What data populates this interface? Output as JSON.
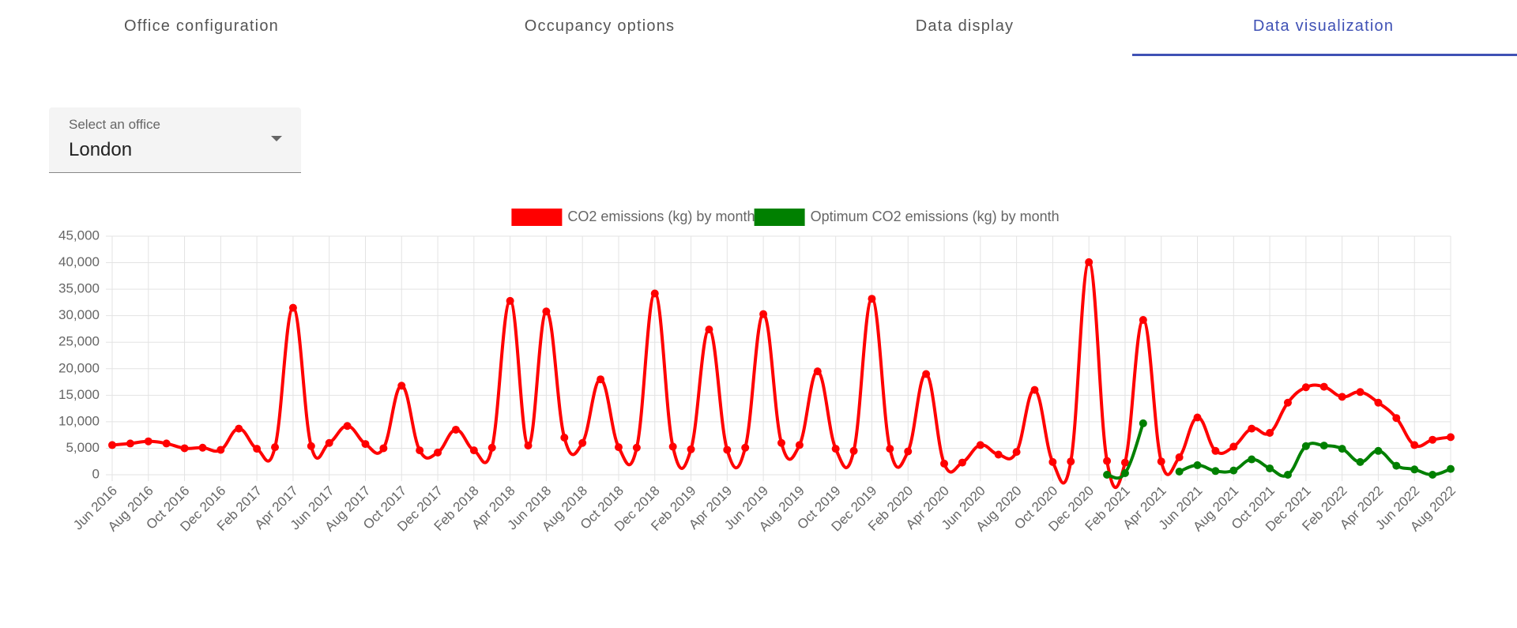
{
  "tabs": [
    "Office configuration",
    "Occupancy options",
    "Data display",
    "Data visualization"
  ],
  "active_tab": 3,
  "office_select": {
    "label": "Select an office",
    "value": "London"
  },
  "chart_data": {
    "type": "line",
    "categories": [
      "Jun 2016",
      null,
      "Aug 2016",
      null,
      "Oct 2016",
      null,
      "Dec 2016",
      null,
      "Feb 2017",
      null,
      "Apr 2017",
      null,
      "Jun 2017",
      null,
      "Aug 2017",
      null,
      "Oct 2017",
      null,
      "Dec 2017",
      null,
      "Feb 2018",
      null,
      "Apr 2018",
      null,
      "Jun 2018",
      null,
      "Aug 2018",
      null,
      "Oct 2018",
      null,
      "Dec 2018",
      null,
      "Feb 2019",
      null,
      "Apr 2019",
      null,
      "Jun 2019",
      null,
      "Aug 2019",
      null,
      "Oct 2019",
      null,
      "Dec 2019",
      null,
      "Feb 2020",
      null,
      "Apr 2020",
      null,
      "Jun 2020",
      null,
      "Aug 2020",
      null,
      "Oct 2020",
      null,
      "Dec 2020",
      null,
      "Feb 2021",
      null,
      "Apr 2021",
      null,
      "Jun 2021",
      null,
      "Aug 2021",
      null,
      "Oct 2021",
      null,
      "Dec 2021",
      null,
      "Feb 2022",
      null,
      "Apr 2022",
      null,
      "Jun 2022",
      null,
      "Aug 2022"
    ],
    "series": [
      {
        "name": "CO2 emissions (kg) by month",
        "color": "#ff0000",
        "values": [
          5600,
          5900,
          6300,
          5900,
          5000,
          5100,
          4700,
          8700,
          4900,
          5200,
          31500,
          5400,
          6000,
          9200,
          5800,
          5000,
          16800,
          4600,
          4200,
          8500,
          4600,
          5100,
          32800,
          5500,
          30800,
          7000,
          6000,
          18000,
          5200,
          5100,
          34200,
          5300,
          4800,
          27400,
          4700,
          5100,
          30300,
          6000,
          5600,
          19500,
          4900,
          4500,
          33200,
          4900,
          4400,
          19000,
          2100,
          2300,
          5600,
          3800,
          4300,
          16000,
          2400,
          2500,
          40100,
          2600,
          2300,
          29200,
          2500,
          3300,
          10800,
          4500,
          5300,
          8700,
          7900,
          13600,
          16500,
          16600,
          14700,
          15600,
          13600,
          10700,
          5600,
          6600,
          7100
        ]
      },
      {
        "name": "Optimum CO2 emissions (kg) by month",
        "color": "#008000",
        "values": [
          null,
          null,
          null,
          null,
          null,
          null,
          null,
          null,
          null,
          null,
          null,
          null,
          null,
          null,
          null,
          null,
          null,
          null,
          null,
          null,
          null,
          null,
          null,
          null,
          null,
          null,
          null,
          null,
          null,
          null,
          null,
          null,
          null,
          null,
          null,
          null,
          null,
          null,
          null,
          null,
          null,
          null,
          null,
          null,
          null,
          null,
          null,
          null,
          null,
          null,
          null,
          null,
          null,
          null,
          null,
          0,
          300,
          9700,
          null,
          600,
          1800,
          700,
          800,
          2900,
          1200,
          0,
          5400,
          5500,
          4900,
          2400,
          4500,
          1700,
          1000,
          0,
          1100
        ]
      }
    ],
    "ylim": [
      0,
      45000
    ],
    "yticks": [
      0,
      {
        "value": 5000,
        "label": "5,000"
      },
      {
        "value": 10000,
        "label": "10,000"
      },
      {
        "value": 15000,
        "label": "15,000"
      },
      {
        "value": 20000,
        "label": "20,000"
      },
      {
        "value": 25000,
        "label": "25,000"
      },
      {
        "value": 30000,
        "label": "30,000"
      },
      {
        "value": 35000,
        "label": "35,000"
      },
      {
        "value": 40000,
        "label": "40,000"
      },
      {
        "value": 45000,
        "label": "45,000"
      }
    ],
    "grid": true,
    "legend": "top"
  }
}
